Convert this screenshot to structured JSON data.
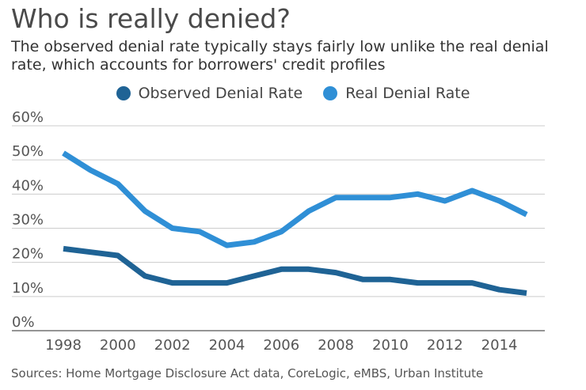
{
  "title": "Who is really denied?",
  "subtitle": "The observed denial rate typically stays fairly low unlike the real denial rate, which accounts for borrowers' credit profiles",
  "source": "Sources: Home Mortgage Disclosure Act data, CoreLogic, eMBS, Urban Institute",
  "colors": {
    "observed": "#1f6395",
    "real": "#2f8fd6",
    "grid": "#cccccc",
    "axis": "#555555"
  },
  "chart_data": {
    "type": "line",
    "title": "Who is really denied?",
    "xlabel": "",
    "ylabel": "",
    "x": [
      1998,
      1999,
      2000,
      2001,
      2002,
      2003,
      2004,
      2005,
      2006,
      2007,
      2008,
      2009,
      2010,
      2011,
      2012,
      2013,
      2014,
      2015
    ],
    "xlim": [
      1998,
      2016
    ],
    "ylim": [
      0,
      60
    ],
    "x_ticks": [
      "1998",
      "2000",
      "2002",
      "2004",
      "2006",
      "2008",
      "2010",
      "2012",
      "2014"
    ],
    "x_tick_values": [
      1998,
      2000,
      2002,
      2004,
      2006,
      2008,
      2010,
      2012,
      2014
    ],
    "y_ticks": [
      "0%",
      "10%",
      "20%",
      "30%",
      "40%",
      "50%",
      "60%"
    ],
    "y_tick_values": [
      0,
      10,
      20,
      30,
      40,
      50,
      60
    ],
    "grid": true,
    "legend_position": "top-center",
    "series": [
      {
        "name": "Observed Denial Rate",
        "key": "observed",
        "values": [
          24,
          23,
          22,
          16,
          14,
          14,
          14,
          16,
          18,
          18,
          17,
          15,
          15,
          14,
          14,
          14,
          12,
          11
        ]
      },
      {
        "name": "Real Denial Rate",
        "key": "real",
        "values": [
          52,
          47,
          43,
          35,
          30,
          29,
          25,
          26,
          29,
          35,
          39,
          39,
          39,
          40,
          38,
          41,
          38,
          34
        ]
      }
    ]
  }
}
